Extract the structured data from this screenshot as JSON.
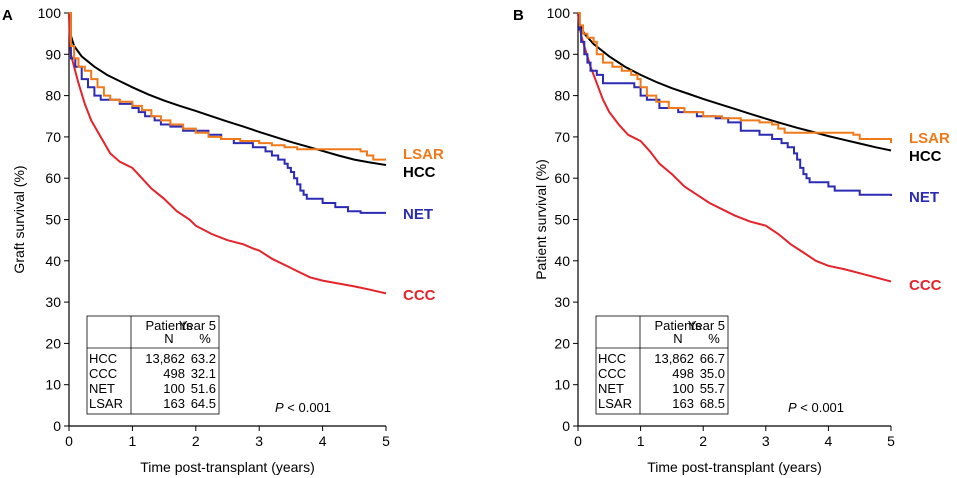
{
  "chart_data": [
    {
      "type": "line",
      "panel_label": "A",
      "xlabel": "Time post-transplant (years)",
      "ylabel": "Graft survival (%)",
      "xlim": [
        0,
        5
      ],
      "ylim": [
        0,
        100
      ],
      "xticks": [
        "0",
        "1",
        "2",
        "3",
        "4",
        "5"
      ],
      "yticks": [
        "0",
        "10",
        "20",
        "30",
        "40",
        "50",
        "60",
        "70",
        "80",
        "90",
        "100"
      ],
      "p_value_label": "P",
      "p_value_rest": " < 0.001",
      "table": {
        "headers": [
          [
            "Patients",
            "N"
          ],
          [
            "Year 5",
            "%"
          ]
        ],
        "rows": [
          {
            "group": "HCC",
            "n": "13,862",
            "pct": "63.2"
          },
          {
            "group": "CCC",
            "n": "498",
            "pct": "32.1"
          },
          {
            "group": "NET",
            "n": "100",
            "pct": "51.6"
          },
          {
            "group": "LSAR",
            "n": "163",
            "pct": "64.5"
          }
        ]
      },
      "series": [
        {
          "name": "HCC",
          "color": "#000000",
          "step": false,
          "points": [
            [
              0,
              100
            ],
            [
              0.02,
              95
            ],
            [
              0.08,
              92
            ],
            [
              0.2,
              89.5
            ],
            [
              0.4,
              87
            ],
            [
              0.6,
              85
            ],
            [
              0.8,
              83.5
            ],
            [
              1,
              82
            ],
            [
              1.25,
              80.3
            ],
            [
              1.5,
              78.8
            ],
            [
              1.75,
              77.5
            ],
            [
              2,
              76.3
            ],
            [
              2.25,
              75
            ],
            [
              2.5,
              73.7
            ],
            [
              2.75,
              72.5
            ],
            [
              3,
              71.2
            ],
            [
              3.25,
              70
            ],
            [
              3.5,
              68.8
            ],
            [
              3.75,
              67.7
            ],
            [
              4,
              66.6
            ],
            [
              4.25,
              65.5
            ],
            [
              4.5,
              64.5
            ],
            [
              4.75,
              63.8
            ],
            [
              5,
              63.2
            ]
          ]
        },
        {
          "name": "CCC",
          "color": "#e3242b",
          "step": false,
          "points": [
            [
              0,
              100
            ],
            [
              0.01,
              95
            ],
            [
              0.03,
              90
            ],
            [
              0.08,
              87
            ],
            [
              0.15,
              83
            ],
            [
              0.25,
              78
            ],
            [
              0.35,
              74
            ],
            [
              0.5,
              70
            ],
            [
              0.65,
              66
            ],
            [
              0.8,
              64
            ],
            [
              1,
              62.5
            ],
            [
              1.15,
              60
            ],
            [
              1.3,
              57.5
            ],
            [
              1.5,
              55
            ],
            [
              1.7,
              52
            ],
            [
              1.9,
              50
            ],
            [
              2,
              48.5
            ],
            [
              2.25,
              46.5
            ],
            [
              2.5,
              45
            ],
            [
              2.75,
              44
            ],
            [
              2.9,
              43
            ],
            [
              3,
              42.5
            ],
            [
              3.2,
              40.5
            ],
            [
              3.4,
              39
            ],
            [
              3.6,
              37.5
            ],
            [
              3.8,
              36
            ],
            [
              4,
              35.2
            ],
            [
              4.25,
              34.5
            ],
            [
              4.5,
              33.8
            ],
            [
              4.75,
              33
            ],
            [
              5,
              32.1
            ]
          ]
        },
        {
          "name": "NET",
          "color": "#2b2bb3",
          "step": true,
          "points": [
            [
              0,
              100
            ],
            [
              0.03,
              89
            ],
            [
              0.1,
              87
            ],
            [
              0.2,
              84
            ],
            [
              0.3,
              82
            ],
            [
              0.4,
              80
            ],
            [
              0.5,
              79
            ],
            [
              0.8,
              78
            ],
            [
              1,
              77
            ],
            [
              1.1,
              76
            ],
            [
              1.2,
              75
            ],
            [
              1.35,
              74
            ],
            [
              1.45,
              73
            ],
            [
              1.6,
              72.5
            ],
            [
              1.8,
              71.5
            ],
            [
              2.2,
              70.5
            ],
            [
              2.4,
              69.5
            ],
            [
              2.6,
              68.5
            ],
            [
              2.9,
              67.5
            ],
            [
              3.1,
              66.5
            ],
            [
              3.2,
              65.5
            ],
            [
              3.3,
              64.5
            ],
            [
              3.4,
              63.5
            ],
            [
              3.45,
              62.5
            ],
            [
              3.5,
              61.5
            ],
            [
              3.55,
              60
            ],
            [
              3.6,
              58.5
            ],
            [
              3.65,
              57
            ],
            [
              3.7,
              56
            ],
            [
              3.75,
              55
            ],
            [
              4,
              54
            ],
            [
              4.2,
              53
            ],
            [
              4.4,
              52
            ],
            [
              4.6,
              51.6
            ],
            [
              5,
              51.6
            ]
          ]
        },
        {
          "name": "LSAR",
          "color": "#f07a1a",
          "step": true,
          "points": [
            [
              0,
              100
            ],
            [
              0.03,
              92
            ],
            [
              0.08,
              89
            ],
            [
              0.15,
              87
            ],
            [
              0.25,
              86
            ],
            [
              0.35,
              84
            ],
            [
              0.45,
              82
            ],
            [
              0.55,
              80
            ],
            [
              0.65,
              79
            ],
            [
              0.8,
              78.5
            ],
            [
              1,
              77.5
            ],
            [
              1.15,
              76.5
            ],
            [
              1.3,
              75
            ],
            [
              1.45,
              74
            ],
            [
              1.6,
              73
            ],
            [
              1.8,
              72
            ],
            [
              2,
              71
            ],
            [
              2.2,
              70
            ],
            [
              2.4,
              69.5
            ],
            [
              2.7,
              69
            ],
            [
              3,
              68.5
            ],
            [
              3.2,
              68
            ],
            [
              3.4,
              67.5
            ],
            [
              3.6,
              67
            ],
            [
              4.6,
              66.5
            ],
            [
              4.7,
              65.5
            ],
            [
              4.8,
              64.5
            ],
            [
              5,
              64.5
            ]
          ]
        }
      ]
    },
    {
      "type": "line",
      "panel_label": "B",
      "xlabel": "Time post-transplant (years)",
      "ylabel": "Patient survival (%)",
      "xlim": [
        0,
        5
      ],
      "ylim": [
        0,
        100
      ],
      "xticks": [
        "0",
        "1",
        "2",
        "3",
        "4",
        "5"
      ],
      "yticks": [
        "0",
        "10",
        "20",
        "30",
        "40",
        "50",
        "60",
        "70",
        "80",
        "90",
        "100"
      ],
      "p_value_label": "P",
      "p_value_rest": " < 0.001",
      "table": {
        "headers": [
          [
            "Patients",
            "N"
          ],
          [
            "Year 5",
            "%"
          ]
        ],
        "rows": [
          {
            "group": "HCC",
            "n": "13,862",
            "pct": "66.7"
          },
          {
            "group": "CCC",
            "n": "498",
            "pct": "35.0"
          },
          {
            "group": "NET",
            "n": "100",
            "pct": "55.7"
          },
          {
            "group": "LSAR",
            "n": "163",
            "pct": "68.5"
          }
        ]
      },
      "series": [
        {
          "name": "HCC",
          "color": "#000000",
          "step": false,
          "points": [
            [
              0,
              100
            ],
            [
              0.03,
              97
            ],
            [
              0.1,
              95
            ],
            [
              0.25,
              92.5
            ],
            [
              0.5,
              89.5
            ],
            [
              0.75,
              87
            ],
            [
              1,
              85
            ],
            [
              1.25,
              83.3
            ],
            [
              1.5,
              81.8
            ],
            [
              1.75,
              80.5
            ],
            [
              2,
              79.2
            ],
            [
              2.25,
              78
            ],
            [
              2.5,
              76.8
            ],
            [
              2.75,
              75.6
            ],
            [
              3,
              74.4
            ],
            [
              3.25,
              73.3
            ],
            [
              3.5,
              72.2
            ],
            [
              3.75,
              71.2
            ],
            [
              4,
              70.2
            ],
            [
              4.25,
              69.3
            ],
            [
              4.5,
              68.4
            ],
            [
              4.75,
              67.5
            ],
            [
              5,
              66.7
            ]
          ]
        },
        {
          "name": "CCC",
          "color": "#e3242b",
          "step": false,
          "points": [
            [
              0,
              100
            ],
            [
              0.02,
              97
            ],
            [
              0.06,
              94
            ],
            [
              0.12,
              91
            ],
            [
              0.2,
              87
            ],
            [
              0.3,
              83
            ],
            [
              0.4,
              79
            ],
            [
              0.5,
              76
            ],
            [
              0.65,
              73
            ],
            [
              0.8,
              70.5
            ],
            [
              1,
              69
            ],
            [
              1.15,
              66.5
            ],
            [
              1.3,
              63.5
            ],
            [
              1.5,
              61
            ],
            [
              1.7,
              58
            ],
            [
              1.9,
              56
            ],
            [
              2.1,
              54
            ],
            [
              2.3,
              52.5
            ],
            [
              2.5,
              51
            ],
            [
              2.75,
              49.5
            ],
            [
              3,
              48.5
            ],
            [
              3.2,
              46.5
            ],
            [
              3.4,
              44
            ],
            [
              3.6,
              42
            ],
            [
              3.8,
              40
            ],
            [
              4,
              38.8
            ],
            [
              4.25,
              38
            ],
            [
              4.5,
              37
            ],
            [
              4.75,
              36
            ],
            [
              5,
              35
            ]
          ]
        },
        {
          "name": "NET",
          "color": "#2b2bb3",
          "step": true,
          "points": [
            [
              0,
              100
            ],
            [
              0.02,
              96
            ],
            [
              0.05,
              93
            ],
            [
              0.1,
              90
            ],
            [
              0.15,
              88
            ],
            [
              0.2,
              86
            ],
            [
              0.3,
              85
            ],
            [
              0.4,
              83
            ],
            [
              0.9,
              82
            ],
            [
              1,
              80
            ],
            [
              1.1,
              79
            ],
            [
              1.3,
              77
            ],
            [
              1.6,
              76
            ],
            [
              1.9,
              75
            ],
            [
              2.2,
              74.5
            ],
            [
              2.4,
              73.5
            ],
            [
              2.6,
              71.5
            ],
            [
              2.9,
              70.5
            ],
            [
              3.1,
              69.5
            ],
            [
              3.25,
              68.5
            ],
            [
              3.35,
              67.5
            ],
            [
              3.45,
              66
            ],
            [
              3.5,
              64.5
            ],
            [
              3.55,
              62.5
            ],
            [
              3.6,
              61
            ],
            [
              3.65,
              60
            ],
            [
              3.7,
              59
            ],
            [
              4,
              58
            ],
            [
              4.1,
              57
            ],
            [
              4.5,
              56
            ],
            [
              5,
              55.7
            ]
          ]
        },
        {
          "name": "LSAR",
          "color": "#f07a1a",
          "step": true,
          "points": [
            [
              0,
              100
            ],
            [
              0.03,
              97
            ],
            [
              0.08,
              95
            ],
            [
              0.15,
              94
            ],
            [
              0.25,
              93
            ],
            [
              0.3,
              90
            ],
            [
              0.4,
              88
            ],
            [
              0.55,
              87
            ],
            [
              0.7,
              86
            ],
            [
              0.85,
              85
            ],
            [
              0.95,
              84
            ],
            [
              1,
              82
            ],
            [
              1.1,
              80
            ],
            [
              1.25,
              78.5
            ],
            [
              1.45,
              77
            ],
            [
              1.7,
              76
            ],
            [
              2,
              75
            ],
            [
              2.3,
              74.5
            ],
            [
              2.6,
              74
            ],
            [
              2.9,
              73.5
            ],
            [
              3.1,
              73
            ],
            [
              3.2,
              72
            ],
            [
              3.3,
              71
            ],
            [
              3.5,
              71
            ],
            [
              4.4,
              70.5
            ],
            [
              4.5,
              69.5
            ],
            [
              5,
              68.5
            ]
          ]
        }
      ]
    }
  ]
}
